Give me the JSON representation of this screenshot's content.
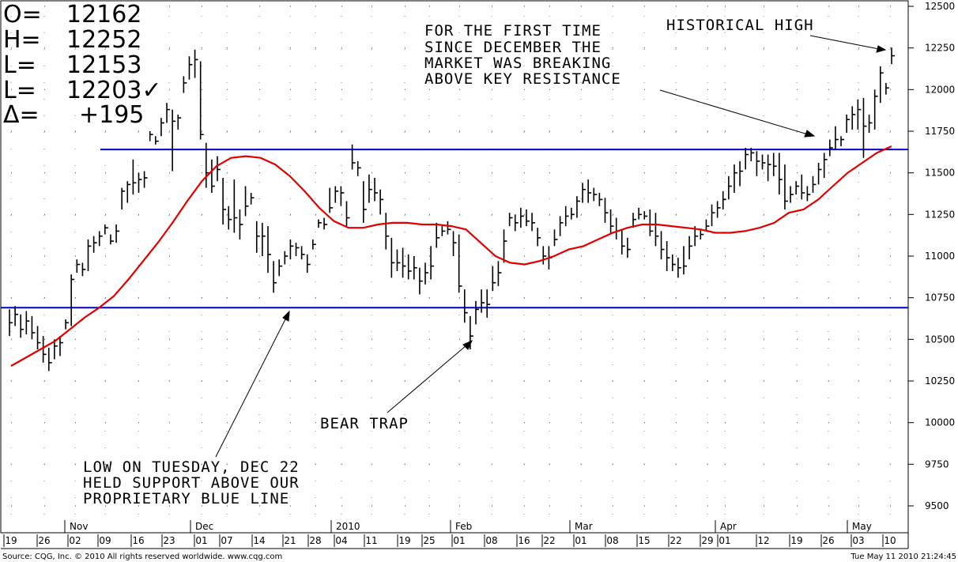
{
  "quote": {
    "open_label": "O=",
    "open": "12162",
    "high_label": "H=",
    "high": "12252",
    "low_label": "L=",
    "low": "12153",
    "last_label": "L=",
    "last": "12203✓",
    "change_label": "Δ=",
    "change": "+195"
  },
  "chart_data": {
    "type": "ohlc",
    "ylim": [
      9300,
      12550
    ],
    "yticks": [
      9500,
      9750,
      10000,
      10250,
      10500,
      10750,
      11000,
      11250,
      11500,
      11750,
      12000,
      12250,
      12500
    ],
    "grid": "dotted",
    "month_labels": [
      "Nov",
      "Dec",
      "2010",
      "Feb",
      "Mar",
      "Apr",
      "May"
    ],
    "week_labels": [
      "19",
      "26",
      "02",
      "09",
      "16",
      "23",
      "01",
      "07",
      "14",
      "21",
      "28",
      "04",
      "11",
      "19",
      "25",
      "01",
      "08",
      "16",
      "22",
      "01",
      "08",
      "15",
      "22",
      "29",
      "01",
      "12",
      "19",
      "26",
      "03",
      "10"
    ],
    "support_level": 10690,
    "resistance_level": 11640,
    "colors": {
      "price_bars": "#000000",
      "moving_average": "#e00000",
      "levels": "#0000d0"
    },
    "bars": [
      {
        "h": 10680,
        "l": 10520,
        "c": 10600
      },
      {
        "h": 10700,
        "l": 10580,
        "c": 10650
      },
      {
        "h": 10650,
        "l": 10510,
        "c": 10560
      },
      {
        "h": 10670,
        "l": 10530,
        "c": 10610
      },
      {
        "h": 10640,
        "l": 10500,
        "c": 10540
      },
      {
        "h": 10580,
        "l": 10440,
        "c": 10480
      },
      {
        "h": 10520,
        "l": 10360,
        "c": 10410
      },
      {
        "h": 10450,
        "l": 10310,
        "c": 10360
      },
      {
        "h": 10500,
        "l": 10380,
        "c": 10460
      },
      {
        "h": 10520,
        "l": 10400,
        "c": 10480
      },
      {
        "h": 10620,
        "l": 10560,
        "c": 10600
      },
      {
        "h": 10890,
        "l": 10580,
        "c": 10860
      },
      {
        "h": 10980,
        "l": 10900,
        "c": 10950
      },
      {
        "h": 10960,
        "l": 10880,
        "c": 10920
      },
      {
        "h": 11100,
        "l": 10910,
        "c": 11060
      },
      {
        "h": 11120,
        "l": 11020,
        "c": 11080
      },
      {
        "h": 11150,
        "l": 11060,
        "c": 11120
      },
      {
        "h": 11190,
        "l": 11130,
        "c": 11170
      },
      {
        "h": 11130,
        "l": 11070,
        "c": 11090
      },
      {
        "h": 11190,
        "l": 11080,
        "c": 11150
      },
      {
        "h": 11410,
        "l": 11280,
        "c": 11390
      },
      {
        "h": 11450,
        "l": 11320,
        "c": 11430
      },
      {
        "h": 11580,
        "l": 11370,
        "c": 11440
      },
      {
        "h": 11500,
        "l": 11380,
        "c": 11460
      },
      {
        "h": 11510,
        "l": 11410,
        "c": 11470
      },
      {
        "h": 11750,
        "l": 11690,
        "c": 11730
      },
      {
        "h": 11720,
        "l": 11670,
        "c": 11690
      },
      {
        "h": 11830,
        "l": 11720,
        "c": 11800
      },
      {
        "h": 11920,
        "l": 11800,
        "c": 11880
      },
      {
        "h": 11880,
        "l": 11510,
        "c": 11810
      },
      {
        "h": 11850,
        "l": 11760,
        "c": 11830
      },
      {
        "h": 12080,
        "l": 11980,
        "c": 12040
      },
      {
        "h": 12200,
        "l": 12060,
        "c": 12150
      },
      {
        "h": 12240,
        "l": 12070,
        "c": 12180
      },
      {
        "h": 12170,
        "l": 11700,
        "c": 11730
      },
      {
        "h": 11680,
        "l": 11410,
        "c": 11500
      },
      {
        "h": 11580,
        "l": 11380,
        "c": 11420
      },
      {
        "h": 11600,
        "l": 11450,
        "c": 11520
      },
      {
        "h": 11470,
        "l": 11190,
        "c": 11280
      },
      {
        "h": 11300,
        "l": 11160,
        "c": 11220
      },
      {
        "h": 11460,
        "l": 11140,
        "c": 11230
      },
      {
        "h": 11280,
        "l": 11100,
        "c": 11190
      },
      {
        "h": 11420,
        "l": 11240,
        "c": 11300
      },
      {
        "h": 11380,
        "l": 11310,
        "c": 11350
      },
      {
        "h": 11210,
        "l": 11020,
        "c": 11120
      },
      {
        "h": 11200,
        "l": 11000,
        "c": 11120
      },
      {
        "h": 11180,
        "l": 10900,
        "c": 11010
      },
      {
        "h": 10970,
        "l": 10780,
        "c": 10840
      },
      {
        "h": 10980,
        "l": 10880,
        "c": 10940
      },
      {
        "h": 11030,
        "l": 10950,
        "c": 11000
      },
      {
        "h": 11100,
        "l": 10980,
        "c": 11060
      },
      {
        "h": 11080,
        "l": 11000,
        "c": 11050
      },
      {
        "h": 11060,
        "l": 10980,
        "c": 11010
      },
      {
        "h": 11010,
        "l": 10900,
        "c": 10950
      },
      {
        "h": 11100,
        "l": 11040,
        "c": 11070
      },
      {
        "h": 11220,
        "l": 11170,
        "c": 11200
      },
      {
        "h": 11230,
        "l": 11160,
        "c": 11190
      },
      {
        "h": 11410,
        "l": 11260,
        "c": 11290
      },
      {
        "h": 11420,
        "l": 11320,
        "c": 11390
      },
      {
        "h": 11420,
        "l": 11300,
        "c": 11380
      },
      {
        "h": 11330,
        "l": 11180,
        "c": 11230
      },
      {
        "h": 11670,
        "l": 11520,
        "c": 11560
      },
      {
        "h": 11570,
        "l": 11480,
        "c": 11530
      },
      {
        "h": 11450,
        "l": 11200,
        "c": 11280
      },
      {
        "h": 11490,
        "l": 11320,
        "c": 11400
      },
      {
        "h": 11470,
        "l": 11330,
        "c": 11380
      },
      {
        "h": 11400,
        "l": 11250,
        "c": 11340
      },
      {
        "h": 11260,
        "l": 11040,
        "c": 11120
      },
      {
        "h": 11110,
        "l": 10870,
        "c": 10960
      },
      {
        "h": 11040,
        "l": 10910,
        "c": 10960
      },
      {
        "h": 11050,
        "l": 10870,
        "c": 10940
      },
      {
        "h": 11010,
        "l": 10860,
        "c": 10910
      },
      {
        "h": 11000,
        "l": 10860,
        "c": 10930
      },
      {
        "h": 10930,
        "l": 10770,
        "c": 10850
      },
      {
        "h": 10960,
        "l": 10830,
        "c": 10900
      },
      {
        "h": 11060,
        "l": 10860,
        "c": 10940
      },
      {
        "h": 11200,
        "l": 11050,
        "c": 11110
      },
      {
        "h": 11180,
        "l": 11120,
        "c": 11150
      },
      {
        "h": 11210,
        "l": 11130,
        "c": 11160
      },
      {
        "h": 11150,
        "l": 11000,
        "c": 11080
      },
      {
        "h": 11130,
        "l": 10780,
        "c": 10820
      },
      {
        "h": 10800,
        "l": 10600,
        "c": 10660
      },
      {
        "h": 10640,
        "l": 10440,
        "c": 10520
      },
      {
        "h": 10730,
        "l": 10590,
        "c": 10680
      },
      {
        "h": 10800,
        "l": 10660,
        "c": 10720
      },
      {
        "h": 10800,
        "l": 10630,
        "c": 10710
      },
      {
        "h": 10940,
        "l": 10790,
        "c": 10840
      },
      {
        "h": 10970,
        "l": 10820,
        "c": 10900
      },
      {
        "h": 11160,
        "l": 10960,
        "c": 11090
      },
      {
        "h": 11260,
        "l": 11180,
        "c": 11230
      },
      {
        "h": 11250,
        "l": 11150,
        "c": 11200
      },
      {
        "h": 11290,
        "l": 11170,
        "c": 11240
      },
      {
        "h": 11280,
        "l": 11180,
        "c": 11210
      },
      {
        "h": 11260,
        "l": 11150,
        "c": 11200
      },
      {
        "h": 11170,
        "l": 11060,
        "c": 11110
      },
      {
        "h": 11060,
        "l": 10950,
        "c": 11000
      },
      {
        "h": 11060,
        "l": 10920,
        "c": 10990
      },
      {
        "h": 11160,
        "l": 11060,
        "c": 11100
      },
      {
        "h": 11240,
        "l": 11120,
        "c": 11200
      },
      {
        "h": 11300,
        "l": 11180,
        "c": 11240
      },
      {
        "h": 11290,
        "l": 11220,
        "c": 11250
      },
      {
        "h": 11360,
        "l": 11230,
        "c": 11330
      },
      {
        "h": 11440,
        "l": 11320,
        "c": 11400
      },
      {
        "h": 11460,
        "l": 11320,
        "c": 11380
      },
      {
        "h": 11410,
        "l": 11330,
        "c": 11370
      },
      {
        "h": 11380,
        "l": 11300,
        "c": 11340
      },
      {
        "h": 11350,
        "l": 11200,
        "c": 11260
      },
      {
        "h": 11280,
        "l": 11140,
        "c": 11180
      },
      {
        "h": 11230,
        "l": 11100,
        "c": 11150
      },
      {
        "h": 11160,
        "l": 11010,
        "c": 11060
      },
      {
        "h": 11110,
        "l": 10990,
        "c": 11040
      },
      {
        "h": 11260,
        "l": 11170,
        "c": 11220
      },
      {
        "h": 11290,
        "l": 11220,
        "c": 11250
      },
      {
        "h": 11270,
        "l": 11220,
        "c": 11240
      },
      {
        "h": 11280,
        "l": 11120,
        "c": 11150
      },
      {
        "h": 11260,
        "l": 11060,
        "c": 11120
      },
      {
        "h": 11150,
        "l": 10980,
        "c": 11040
      },
      {
        "h": 11090,
        "l": 10910,
        "c": 10990
      },
      {
        "h": 11010,
        "l": 10910,
        "c": 10950
      },
      {
        "h": 10990,
        "l": 10870,
        "c": 10930
      },
      {
        "h": 11060,
        "l": 10890,
        "c": 10940
      },
      {
        "h": 11120,
        "l": 10980,
        "c": 11060
      },
      {
        "h": 11180,
        "l": 11060,
        "c": 11120
      },
      {
        "h": 11160,
        "l": 11100,
        "c": 11130
      },
      {
        "h": 11220,
        "l": 11150,
        "c": 11180
      },
      {
        "h": 11310,
        "l": 11180,
        "c": 11260
      },
      {
        "h": 11330,
        "l": 11230,
        "c": 11290
      },
      {
        "h": 11390,
        "l": 11280,
        "c": 11340
      },
      {
        "h": 11480,
        "l": 11340,
        "c": 11420
      },
      {
        "h": 11550,
        "l": 11380,
        "c": 11500
      },
      {
        "h": 11570,
        "l": 11420,
        "c": 11510
      },
      {
        "h": 11650,
        "l": 11520,
        "c": 11610
      },
      {
        "h": 11650,
        "l": 11570,
        "c": 11620
      },
      {
        "h": 11630,
        "l": 11480,
        "c": 11570
      },
      {
        "h": 11610,
        "l": 11520,
        "c": 11560
      },
      {
        "h": 11610,
        "l": 11450,
        "c": 11550
      },
      {
        "h": 11620,
        "l": 11480,
        "c": 11540
      },
      {
        "h": 11620,
        "l": 11370,
        "c": 11460
      },
      {
        "h": 11550,
        "l": 11280,
        "c": 11330
      },
      {
        "h": 11420,
        "l": 11320,
        "c": 11370
      },
      {
        "h": 11450,
        "l": 11370,
        "c": 11420
      },
      {
        "h": 11490,
        "l": 11340,
        "c": 11380
      },
      {
        "h": 11420,
        "l": 11330,
        "c": 11370
      },
      {
        "h": 11480,
        "l": 11380,
        "c": 11430
      },
      {
        "h": 11560,
        "l": 11430,
        "c": 11520
      },
      {
        "h": 11620,
        "l": 11470,
        "c": 11580
      },
      {
        "h": 11700,
        "l": 11600,
        "c": 11650
      },
      {
        "h": 11780,
        "l": 11640,
        "c": 11700
      },
      {
        "h": 11720,
        "l": 11660,
        "c": 11700
      },
      {
        "h": 11850,
        "l": 11740,
        "c": 11820
      },
      {
        "h": 11900,
        "l": 11760,
        "c": 11850
      },
      {
        "h": 11940,
        "l": 11760,
        "c": 11880
      },
      {
        "h": 11950,
        "l": 11590,
        "c": 11780
      },
      {
        "h": 11850,
        "l": 11740,
        "c": 11800
      },
      {
        "h": 12000,
        "l": 11760,
        "c": 11960
      },
      {
        "h": 12140,
        "l": 11920,
        "c": 12100
      },
      {
        "h": 12040,
        "l": 11970,
        "c": 12010
      },
      {
        "h": 12252,
        "l": 12153,
        "c": 12203
      }
    ],
    "moving_average": [
      10340,
      10390,
      10440,
      10490,
      10560,
      10630,
      10690,
      10760,
      10860,
      10970,
      11080,
      11200,
      11330,
      11450,
      11540,
      11590,
      11600,
      11590,
      11550,
      11480,
      11390,
      11290,
      11210,
      11170,
      11170,
      11190,
      11200,
      11200,
      11190,
      11190,
      11180,
      11160,
      11080,
      11000,
      10960,
      10950,
      10970,
      11000,
      11040,
      11060,
      11100,
      11140,
      11170,
      11190,
      11190,
      11180,
      11170,
      11160,
      11140,
      11140,
      11150,
      11170,
      11200,
      11260,
      11280,
      11340,
      11420,
      11500,
      11560,
      11620,
      11660
    ],
    "annotations": [
      "FOR THE FIRST TIME",
      "SINCE DECEMBER THE",
      "MARKET WAS BREAKING",
      "ABOVE KEY RESISTANCE",
      "HISTORICAL HIGH",
      "BEAR TRAP",
      "LOW ON TUESDAY, DEC 22",
      "HELD SUPPORT ABOVE OUR",
      "PROPRIETARY BLUE LINE"
    ]
  },
  "footer": {
    "source": "Source: CQG, Inc. © 2010 All rights reserved worldwide. www.cqg.com",
    "timestamp": "Tue May 11 2010 21:24:45"
  }
}
